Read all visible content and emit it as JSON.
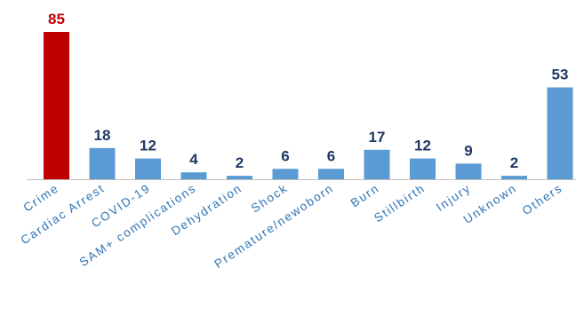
{
  "chart_data": {
    "type": "bar",
    "categories": [
      "Crime",
      "Cardiac Arrest",
      "COVID-19",
      "SAM+ complications",
      "Dehydration",
      "Shock",
      "Premature/newoborn",
      "Burn",
      "Stillbirth",
      "Injury",
      "Unknown",
      "Others"
    ],
    "values": [
      85,
      18,
      12,
      4,
      2,
      6,
      6,
      17,
      12,
      9,
      2,
      53
    ],
    "title": "",
    "xlabel": "",
    "ylabel": "",
    "ylim": [
      0,
      85
    ],
    "grid": false,
    "legend": "none",
    "highlight_index": 0,
    "colors": {
      "bar": "#5b9bd5",
      "highlight_bar": "#c00000",
      "value_label": "#1f3864",
      "highlight_label": "#c00000",
      "category_label": "#2e75b6",
      "baseline": "#bfbfbf",
      "background": "#ffffff"
    }
  }
}
